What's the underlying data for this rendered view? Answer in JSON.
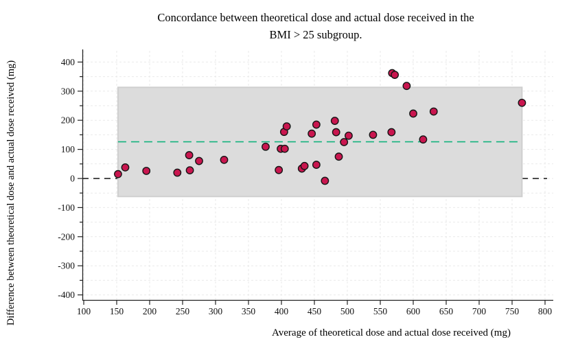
{
  "chart_data": {
    "type": "scatter",
    "title": "Concordance between theoretical dose and actual dose received in the BMI > 25 subgroup.",
    "title_lines": [
      "Concordance between theoretical dose and actual dose received in the",
      "BMI > 25 subgroup."
    ],
    "xlabel": "Average of theoretical dose and actual dose received (mg)",
    "ylabel": "Difference between theoretical dose and actual dose received (mg)",
    "xlim": [
      100,
      800
    ],
    "ylim": [
      -400,
      400
    ],
    "x_ticks": [
      100,
      150,
      200,
      250,
      300,
      350,
      400,
      450,
      500,
      550,
      600,
      650,
      700,
      750,
      800
    ],
    "y_ticks": [
      -400,
      -300,
      -200,
      -100,
      0,
      100,
      200,
      300,
      400
    ],
    "grid": "dashed light gray, every 50 units both axes",
    "mean_line": 126,
    "upper_limit": 313,
    "lower_limit": -62,
    "zero_line": 0,
    "band_x": [
      152,
      765
    ],
    "points": [
      [
        152,
        15
      ],
      [
        163,
        38
      ],
      [
        195,
        26
      ],
      [
        242,
        20
      ],
      [
        261,
        28
      ],
      [
        260,
        80
      ],
      [
        275,
        60
      ],
      [
        313,
        64
      ],
      [
        376,
        109
      ],
      [
        396,
        29
      ],
      [
        399,
        102
      ],
      [
        405,
        102
      ],
      [
        404,
        160
      ],
      [
        408,
        179
      ],
      [
        431,
        34
      ],
      [
        435,
        43
      ],
      [
        446,
        154
      ],
      [
        453,
        185
      ],
      [
        453,
        47
      ],
      [
        466,
        -8
      ],
      [
        481,
        198
      ],
      [
        483,
        159
      ],
      [
        487,
        75
      ],
      [
        495,
        125
      ],
      [
        502,
        147
      ],
      [
        539,
        150
      ],
      [
        567,
        159
      ],
      [
        568,
        362
      ],
      [
        572,
        356
      ],
      [
        590,
        318
      ],
      [
        600,
        223
      ],
      [
        615,
        134
      ],
      [
        631,
        230
      ],
      [
        765,
        260
      ]
    ],
    "colors": {
      "point": "#c9164f",
      "point_border": "#151515",
      "band": "#dcdcdc",
      "band_border": "#cfcfcf",
      "mean_line": "#12b27c",
      "zero_line": "#111111",
      "grid": "#e9e9e9",
      "axis": "#222222"
    }
  }
}
